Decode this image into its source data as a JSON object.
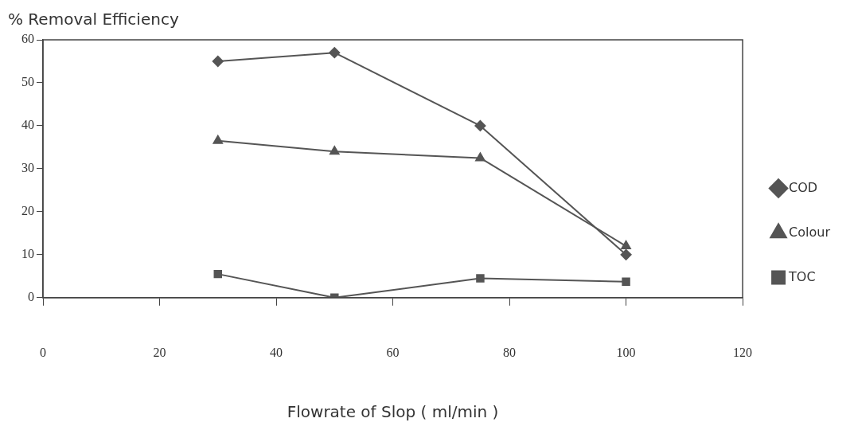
{
  "chart_data": {
    "type": "line",
    "ylabel": "% Removal Efficiency",
    "xlabel": "Flowrate of Slop ( ml/min )",
    "xlim": [
      0,
      120
    ],
    "xticks": [
      0,
      20,
      40,
      60,
      80,
      100,
      120
    ],
    "ylim": [
      0,
      60
    ],
    "yticks": [
      0,
      10,
      20,
      30,
      40,
      50,
      60
    ],
    "grid": false,
    "legend": "right",
    "line_style": "solid",
    "series": [
      {
        "name": "COD",
        "color": "#555555",
        "marker": "diamond",
        "x": [
          30,
          50,
          75,
          100
        ],
        "values": [
          55,
          57,
          40,
          10
        ]
      },
      {
        "name": "Colour",
        "color": "#555555",
        "marker": "triangle",
        "x": [
          30,
          50,
          75,
          100
        ],
        "values": [
          36.5,
          34,
          32.5,
          12
        ]
      },
      {
        "name": "TOC",
        "color": "#555555",
        "marker": "square",
        "x": [
          30,
          50,
          75,
          100
        ],
        "values": [
          5.5,
          0,
          4.5,
          3.7
        ]
      }
    ]
  }
}
